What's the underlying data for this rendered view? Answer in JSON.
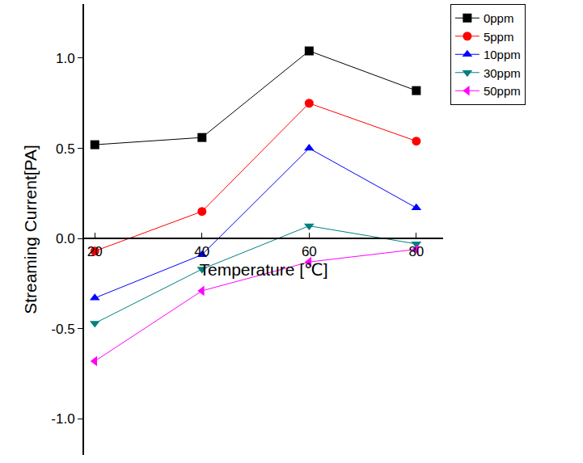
{
  "chart_data": {
    "type": "line",
    "x_label": "Temperature [℃]",
    "y_label": "Streaming Current[PA]",
    "x": [
      20,
      40,
      60,
      80
    ],
    "series": [
      {
        "name": "0ppm",
        "color": "#000000",
        "marker": "square",
        "values": [
          0.52,
          0.56,
          1.04,
          0.82
        ]
      },
      {
        "name": "5ppm",
        "color": "#ff0000",
        "marker": "circle",
        "values": [
          -0.07,
          0.15,
          0.75,
          0.54
        ]
      },
      {
        "name": "10ppm",
        "color": "#0000ff",
        "marker": "triangle-up",
        "values": [
          -0.33,
          -0.09,
          0.5,
          0.17
        ]
      },
      {
        "name": "30ppm",
        "color": "#008080",
        "marker": "triangle-down",
        "values": [
          -0.47,
          -0.17,
          0.07,
          -0.03
        ]
      },
      {
        "name": "50ppm",
        "color": "#ff00ff",
        "marker": "triangle-left",
        "values": [
          -0.68,
          -0.29,
          -0.13,
          -0.06
        ]
      }
    ],
    "xlim": [
      18,
      85
    ],
    "xticks": [
      20,
      40,
      60,
      80
    ],
    "ylim": [
      -1.2,
      1.3
    ],
    "yticks": [
      {
        "value": -1,
        "label": "-1.0"
      },
      {
        "value": -0.5,
        "label": "-0.5"
      },
      {
        "value": 0,
        "label": "0.0"
      },
      {
        "value": 0.5,
        "label": "0.5"
      },
      {
        "value": 1,
        "label": "1.0"
      }
    ],
    "grid": false,
    "legend": "top right"
  }
}
